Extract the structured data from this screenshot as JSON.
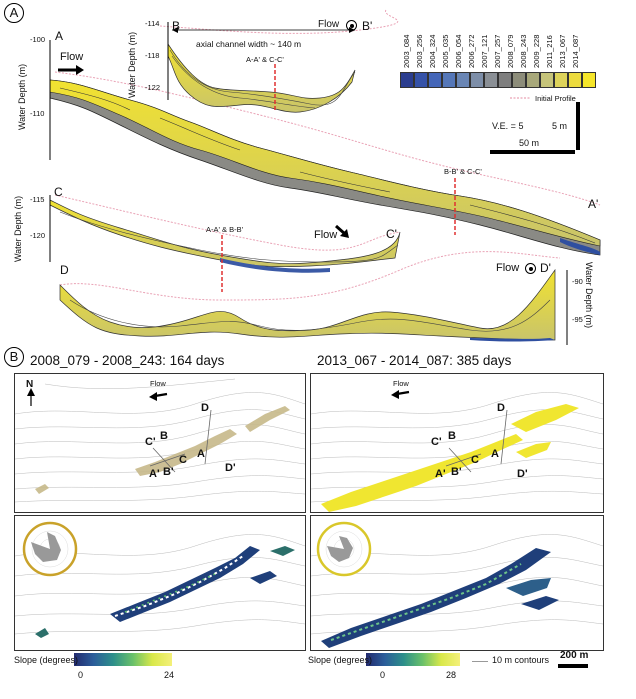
{
  "panel_a": {
    "letter": "A",
    "flow_label": "Flow",
    "ylabel_left": "Water Depth (m)",
    "ylabel_right": "Water Depth (m)",
    "ticks_left": [
      "-100",
      "-110"
    ],
    "ticks_b": [
      "-114",
      "-118",
      "-122"
    ],
    "ticks_c": [
      "-115",
      "-120"
    ],
    "ticks_right": [
      "-90",
      "-95"
    ],
    "profile_labels": {
      "A": "A",
      "A2": "A'",
      "B": "B",
      "B2": "B'",
      "C": "C",
      "C2": "C'",
      "D": "D",
      "D2": "D'"
    },
    "axial_width": "axial channel width ~ 140 m",
    "cross_ac": "A-A' & C-C'",
    "cross_bc": "B-B' & C-C'",
    "cross_ab": "A-A' & B-B'",
    "ve": "V.E. = 5",
    "scale_v": "5 m",
    "scale_h": "50 m",
    "initial_profile": "Initial Profile",
    "legend_surveys": [
      "2003_084",
      "2003_256",
      "2004_324",
      "2005_035",
      "2006_054",
      "2006_272",
      "2007_121",
      "2007_257",
      "2008_079",
      "2008_243",
      "2009_228",
      "2011_216",
      "2013_067",
      "2014_087"
    ],
    "legend_colors": [
      "#2b3d8f",
      "#3552a8",
      "#4466b8",
      "#5577b8",
      "#6a86b5",
      "#7d8ea8",
      "#8a8f95",
      "#7f7f7f",
      "#8d8d7a",
      "#a8a87a",
      "#c6c47a",
      "#ddd35a",
      "#ecdb3e",
      "#f6e62a"
    ]
  },
  "panel_b": {
    "letter": "B",
    "title_left": "2008_079 - 2008_243: 164 days",
    "title_right": "2013_067 - 2014_087: 385 days",
    "north": "N",
    "flow_label": "Flow",
    "points": {
      "A": "A",
      "A2": "A'",
      "B": "B",
      "B2": "B'",
      "C": "C",
      "C2": "C'",
      "D": "D",
      "D2": "D'"
    },
    "slope_label": "Slope (degrees)",
    "slope_left": {
      "min": "0",
      "max": "24"
    },
    "slope_right": {
      "min": "0",
      "max": "28"
    },
    "contour_label": "10 m contours",
    "scale": "200 m"
  }
}
